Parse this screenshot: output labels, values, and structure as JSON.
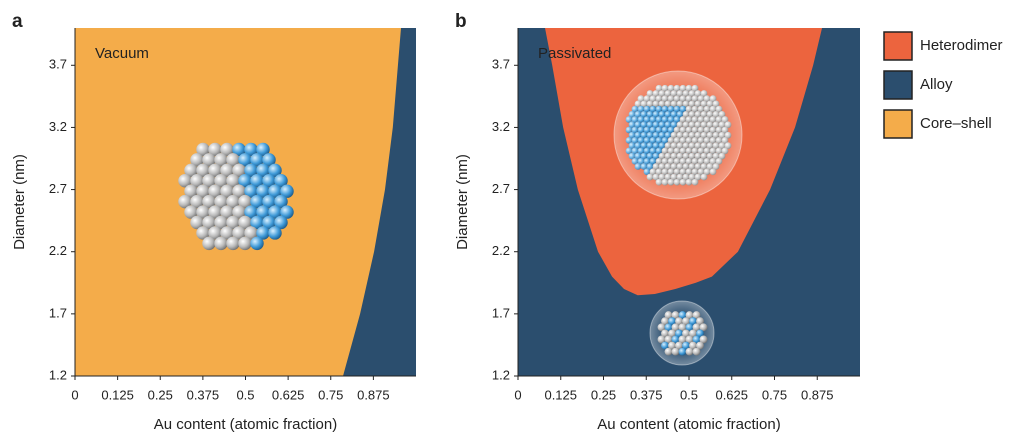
{
  "chart_data": [
    {
      "type": "phase",
      "panel_label": "a",
      "annotation": "Vacuum",
      "x_label": "Au content (atomic fraction)",
      "y_label": "Diameter (nm)",
      "xlim": [
        0,
        1
      ],
      "ylim": [
        1.2,
        4.0
      ],
      "xticks": [
        0,
        0.125,
        0.25,
        0.375,
        0.5,
        0.625,
        0.75,
        0.875
      ],
      "yticks": [
        1.2,
        1.7,
        2.2,
        2.7,
        3.2,
        3.7
      ],
      "background_color": "#f4ac4a",
      "region_color": "#2b4e6e",
      "boundary": {
        "x": [
          0.786,
          0.836,
          0.877,
          0.909,
          0.932,
          0.947,
          0.956
        ],
        "y": [
          1.2,
          1.7,
          2.2,
          2.7,
          3.2,
          3.7,
          4.0
        ]
      }
    },
    {
      "type": "phase",
      "panel_label": "b",
      "annotation": "Passivated",
      "x_label": "Au content (atomic fraction)",
      "y_label": "Diameter (nm)",
      "xlim": [
        0,
        1
      ],
      "ylim": [
        1.2,
        4.0
      ],
      "xticks": [
        0,
        0.125,
        0.25,
        0.375,
        0.5,
        0.625,
        0.75,
        0.875
      ],
      "yticks": [
        1.2,
        1.7,
        2.2,
        2.7,
        3.2,
        3.7
      ],
      "background_color": "#2b4e6e",
      "region_color": "#ec643e",
      "boundary": {
        "x": [
          0.079,
          0.1,
          0.132,
          0.175,
          0.234,
          0.275,
          0.31,
          0.35,
          0.4,
          0.46,
          0.52,
          0.567,
          0.643,
          0.737,
          0.81,
          0.863,
          0.889
        ],
        "y": [
          4.0,
          3.7,
          3.2,
          2.7,
          2.2,
          2.0,
          1.9,
          1.85,
          1.86,
          1.9,
          1.95,
          2.0,
          2.2,
          2.7,
          3.2,
          3.7,
          4.0
        ]
      }
    }
  ],
  "legend": [
    {
      "name": "Heterodimer",
      "color": "#ec643e"
    },
    {
      "name": "Alloy",
      "color": "#2b4e6e"
    },
    {
      "name": "Core–shell",
      "color": "#f4ac4a"
    }
  ]
}
